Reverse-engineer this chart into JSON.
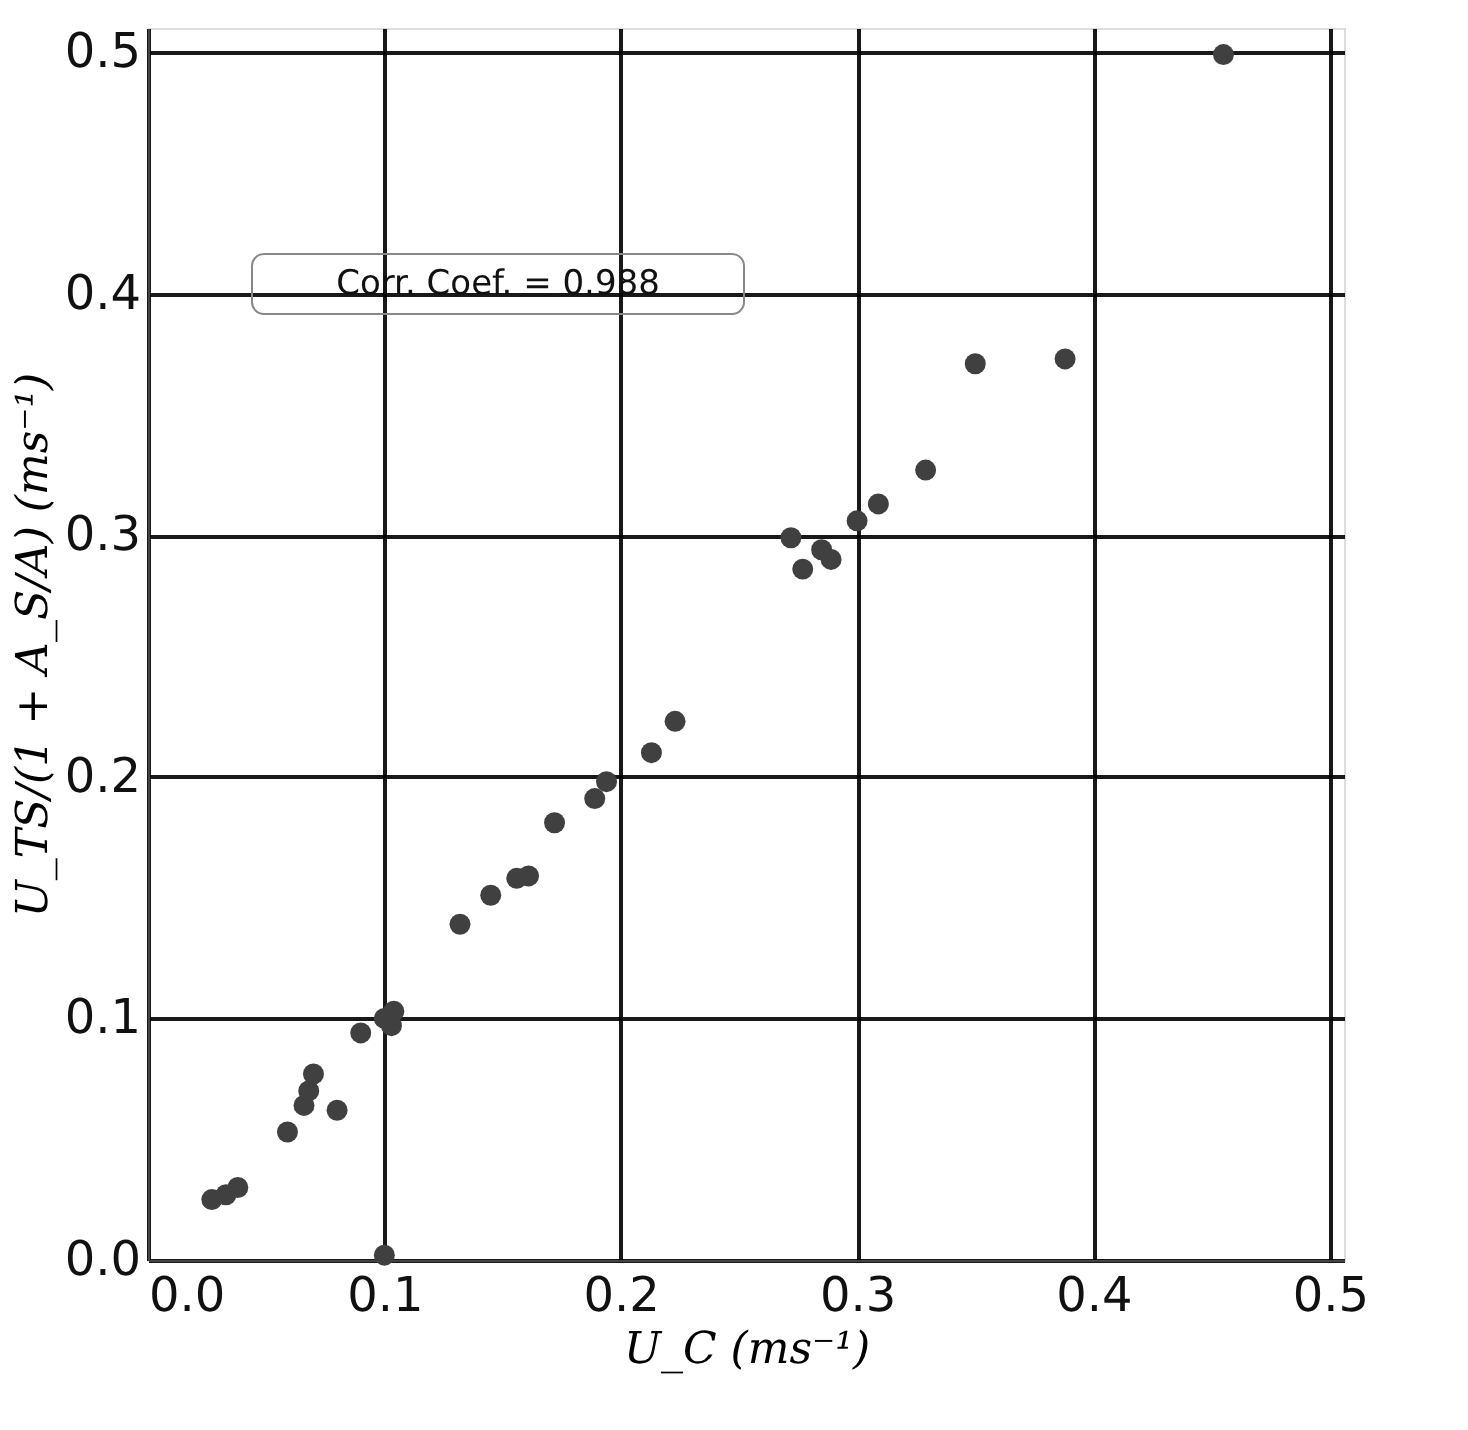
{
  "chart_data": {
    "type": "scatter",
    "xlabel": "U_C (ms⁻¹)",
    "ylabel": "U_TS/(1 + A_S/A)  (ms⁻¹)",
    "x": [
      0.027,
      0.033,
      0.038,
      0.059,
      0.066,
      0.068,
      0.07,
      0.08,
      0.09,
      0.1,
      0.104,
      0.103,
      0.1,
      0.132,
      0.145,
      0.156,
      0.161,
      0.172,
      0.189,
      0.194,
      0.213,
      0.223,
      0.272,
      0.277,
      0.285,
      0.289,
      0.3,
      0.309,
      0.329,
      0.35,
      0.388,
      0.455
    ],
    "series": [
      {
        "color": "#404040",
        "values": [
          0.025,
          0.027,
          0.03,
          0.053,
          0.064,
          0.07,
          0.077,
          0.062,
          0.094,
          0.1,
          0.103,
          0.097,
          0.002,
          0.139,
          0.151,
          0.158,
          0.159,
          0.181,
          0.191,
          0.198,
          0.21,
          0.223,
          0.299,
          0.286,
          0.294,
          0.29,
          0.306,
          0.313,
          0.327,
          0.371,
          0.373,
          0.499
        ]
      }
    ],
    "xlim": [
      0,
      0.506
    ],
    "ylim": [
      0,
      0.51
    ],
    "xticks": [
      {
        "value": 0,
        "label": "0.0"
      },
      0.1,
      0.2,
      0.3,
      0.4,
      0.5
    ],
    "yticks": [
      {
        "value": 0,
        "label": "0.0"
      },
      0.1,
      0.2,
      0.3,
      0.4,
      0.5
    ],
    "grid": true,
    "marker": "circle",
    "annotations": [
      "Corr. Coef. =  0.988"
    ]
  }
}
